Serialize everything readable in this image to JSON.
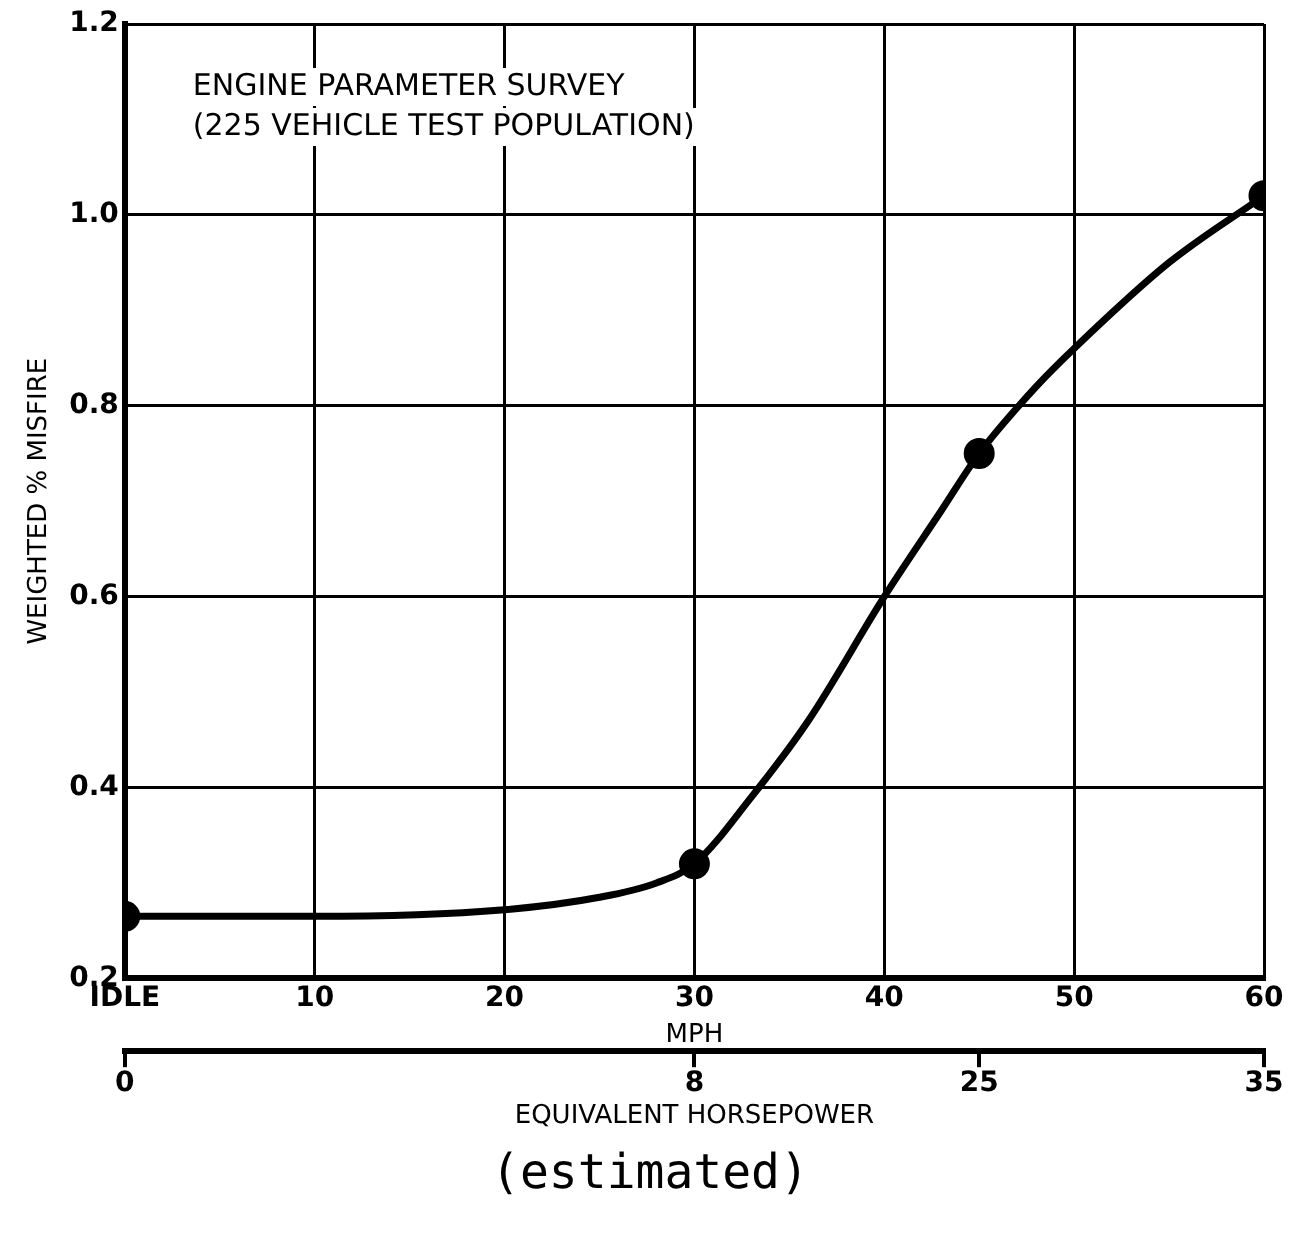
{
  "chart_data": {
    "type": "line",
    "xlabel": "MPH",
    "ylabel": "WEIGHTED % MISFIRE",
    "x2label": "EQUIVALENT HORSEPOWER",
    "annotations": [
      "ENGINE PARAMETER SURVEY\n(225 VEHICLE TEST POPULATION)",
      "(estimated)",
      "0",
      "8",
      "25",
      "35"
    ],
    "xlim": [
      0,
      60
    ],
    "xticks": [
      {
        "value": 0,
        "label": "IDLE"
      },
      10,
      20,
      30,
      40,
      50,
      60
    ],
    "ylim": [
      0.2,
      1.2
    ],
    "yticks": [
      0.2,
      0.4,
      0.6,
      0.8,
      {
        "value": 1,
        "label": "1.0"
      },
      1.2
    ],
    "grid": true,
    "legend": false,
    "series": [
      {
        "type": "line",
        "color": "#000000",
        "marker": "none",
        "line_style": "solid",
        "x": [
          0,
          10,
          20,
          25,
          28,
          30,
          33,
          36,
          40,
          43,
          45,
          48,
          50,
          55,
          60
        ],
        "values": [
          0.265,
          0.265,
          0.272,
          0.285,
          0.3,
          0.32,
          0.39,
          0.47,
          0.6,
          0.69,
          0.75,
          0.82,
          0.86,
          0.95,
          1.02
        ]
      },
      {
        "type": "scatter",
        "color": "#000000",
        "marker": "circle",
        "x": [
          0,
          30,
          45,
          60
        ],
        "values": [
          0.265,
          0.32,
          0.75,
          1.02
        ]
      }
    ]
  }
}
